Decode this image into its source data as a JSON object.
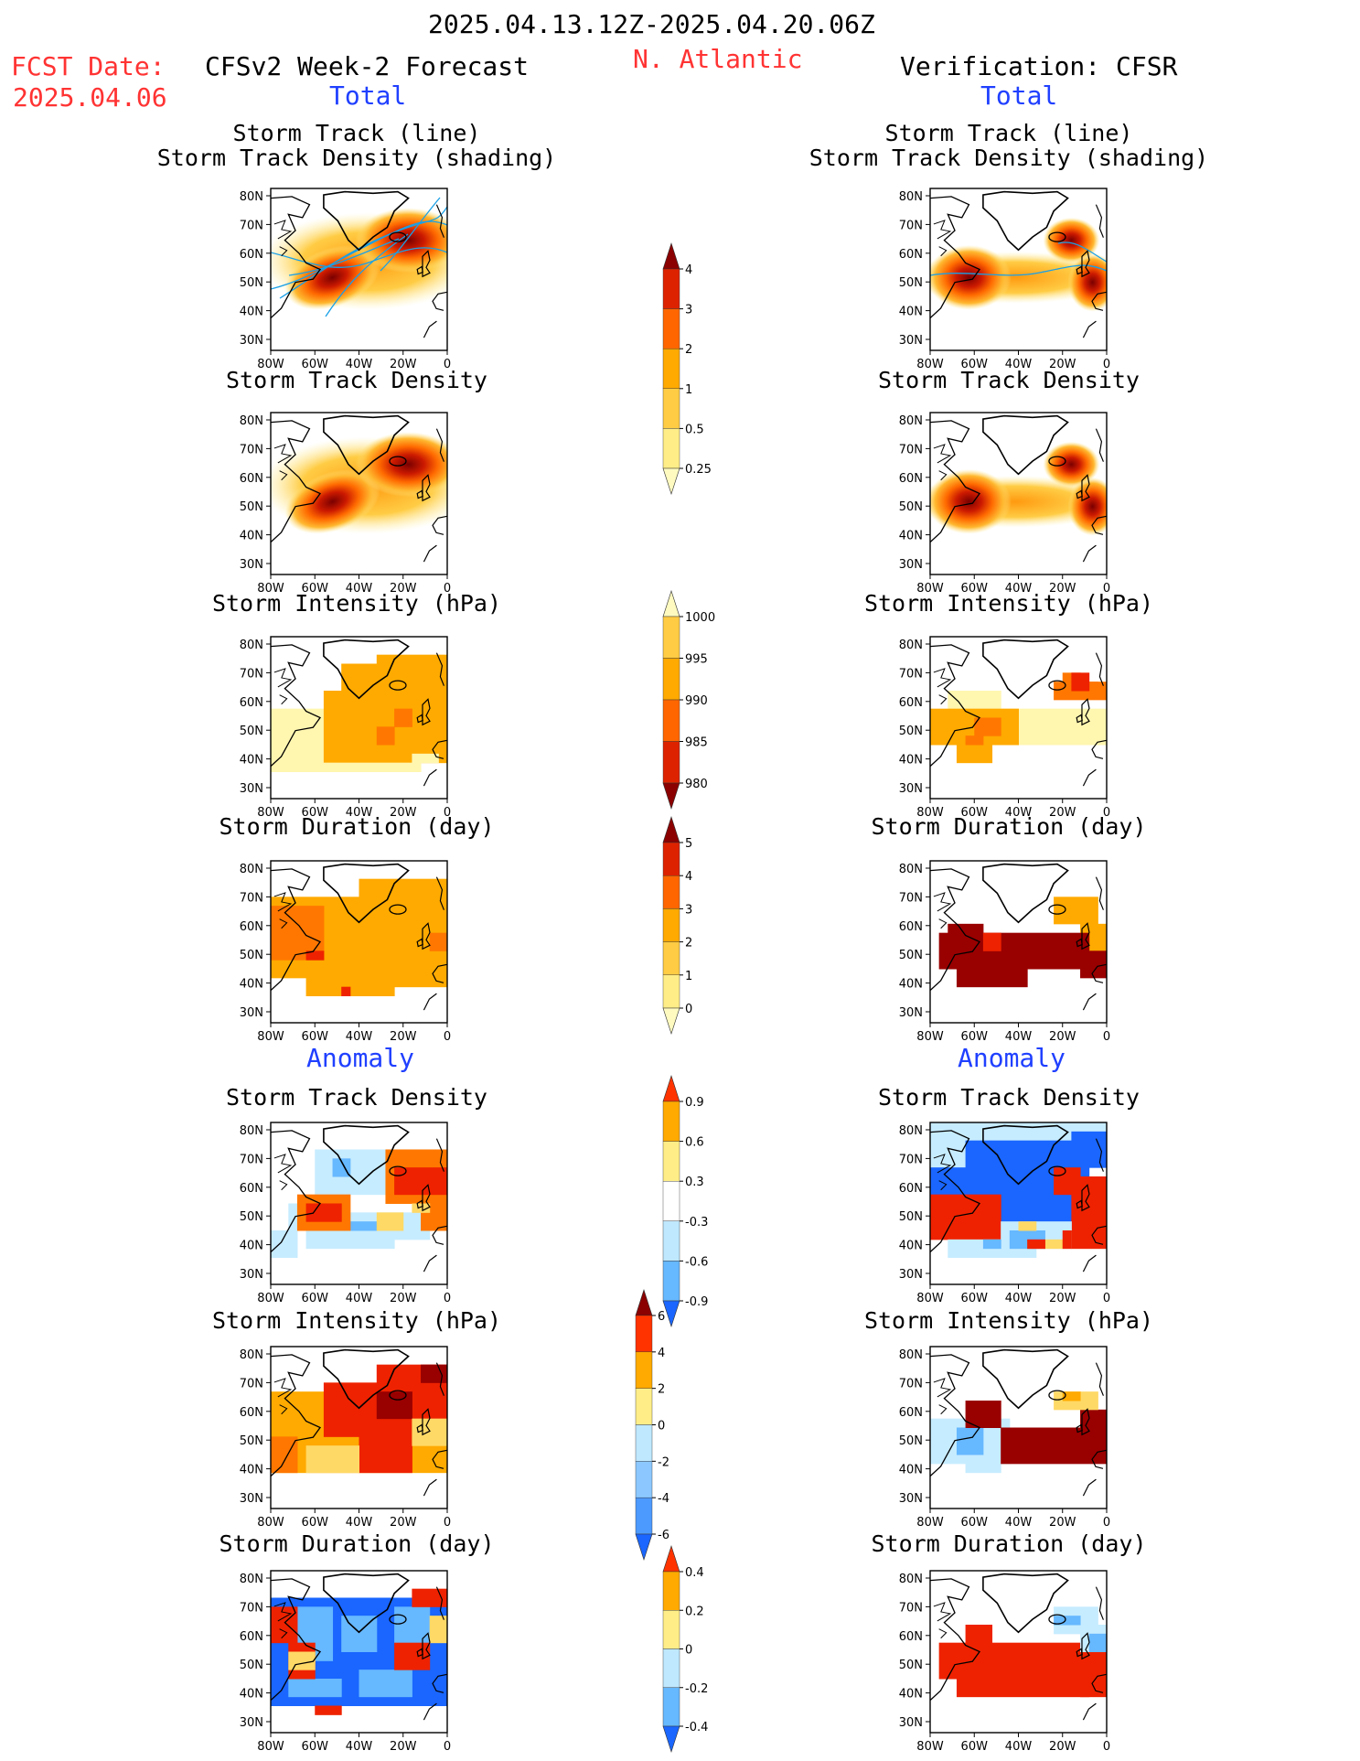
{
  "header": {
    "date_range": "2025.04.13.12Z-2025.04.20.06Z",
    "fcst_label": "FCST Date:",
    "fcst_date": "2025.04.06",
    "left_title": "CFSv2 Week-2 Forecast",
    "region": "N. Atlantic",
    "right_title": "Verification: CFSR",
    "left_subtitle": "Total",
    "right_subtitle": "Total",
    "left_anomaly": "Anomaly",
    "right_anomaly": "Anomaly"
  },
  "panel_titles": {
    "track": [
      "Storm Track (line)",
      "Storm Track Density (shading)"
    ],
    "density": "Storm Track Density",
    "intensity": "Storm Intensity (hPa)",
    "duration": "Storm Duration (day)"
  },
  "axes": {
    "lat_ticks": [
      "80N",
      "70N",
      "60N",
      "50N",
      "40N",
      "30N"
    ],
    "lon_ticks": [
      "80W",
      "60W",
      "40W",
      "20W",
      "0"
    ]
  },
  "colorbars": [
    {
      "id": "density_total",
      "labels": [
        "4",
        "3",
        "2",
        "1",
        "0.5",
        "0.25"
      ],
      "colors": [
        "#8b0000",
        "#dd2200",
        "#ff6600",
        "#ffaa00",
        "#ffcc44",
        "#ffee88",
        "#fffbc0"
      ]
    },
    {
      "id": "intensity_total",
      "labels": [
        "1000",
        "995",
        "990",
        "985",
        "980"
      ],
      "colors": [
        "#fffbc0",
        "#ffcc44",
        "#ffaa00",
        "#ff6600",
        "#dd2200",
        "#8b0000"
      ]
    },
    {
      "id": "duration_total",
      "labels": [
        "5",
        "4",
        "3",
        "2",
        "1",
        "0"
      ],
      "colors": [
        "#8b0000",
        "#dd2200",
        "#ff6600",
        "#ffaa00",
        "#ffcc44",
        "#ffee88",
        "#fffbc0"
      ]
    },
    {
      "id": "density_anom",
      "labels": [
        "0.9",
        "0.6",
        "0.3",
        "-0.3",
        "-0.6",
        "-0.9"
      ],
      "colors": [
        "#ff3300",
        "#ffaa00",
        "#ffee88",
        "#ffffff",
        "#bfe8ff",
        "#66b8ff",
        "#1a66ff"
      ]
    },
    {
      "id": "intensity_anom",
      "labels": [
        "6",
        "4",
        "2",
        "0",
        "-2",
        "-4",
        "-6"
      ],
      "colors": [
        "#8b0000",
        "#ff3300",
        "#ffaa00",
        "#ffee88",
        "#bfe8ff",
        "#8cc8ff",
        "#4d9aff",
        "#1a66ff"
      ]
    },
    {
      "id": "duration_anom",
      "labels": [
        "0.4",
        "0.2",
        "0",
        "-0.2",
        "-0.4"
      ],
      "colors": [
        "#ff3300",
        "#ffaa00",
        "#ffee88",
        "#bfe8ff",
        "#66b8ff",
        "#1a66ff"
      ]
    }
  ]
}
